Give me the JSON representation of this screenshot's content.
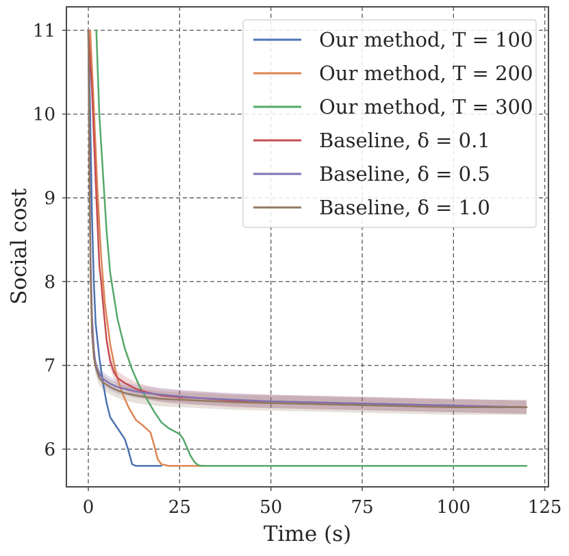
{
  "chart_data": {
    "type": "line",
    "title": "",
    "xlabel": "Time (s)",
    "ylabel": "Social cost",
    "xlim": [
      -6,
      126
    ],
    "ylim": [
      5.55,
      11.28
    ],
    "xticks": [
      0,
      25,
      50,
      75,
      100,
      125
    ],
    "yticks": [
      6,
      7,
      8,
      9,
      10,
      11
    ],
    "xtick_labels": [
      "0",
      "25",
      "50",
      "75",
      "100",
      "125"
    ],
    "ytick_labels": [
      "6",
      "7",
      "8",
      "9",
      "10",
      "11"
    ],
    "grid": true,
    "legend_position": "top-right",
    "series": [
      {
        "name": "Our method, T = 100",
        "color": "#4c72b0",
        "points": [
          [
            0,
            11.0
          ],
          [
            0.5,
            10.0
          ],
          [
            1,
            8.8
          ],
          [
            1.5,
            8.0
          ],
          [
            2,
            7.5
          ],
          [
            3,
            7.1
          ],
          [
            4,
            6.8
          ],
          [
            5,
            6.55
          ],
          [
            6,
            6.38
          ],
          [
            8,
            6.25
          ],
          [
            10,
            6.12
          ],
          [
            11,
            5.98
          ],
          [
            12,
            5.82
          ],
          [
            13,
            5.8
          ],
          [
            20,
            5.8
          ]
        ]
      },
      {
        "name": "Our method, T = 200",
        "color": "#dd8452",
        "points": [
          [
            0.5,
            11.0
          ],
          [
            1.5,
            10.1
          ],
          [
            2.5,
            9.1
          ],
          [
            3.5,
            8.3
          ],
          [
            4.5,
            7.75
          ],
          [
            6,
            7.25
          ],
          [
            7.5,
            6.92
          ],
          [
            9,
            6.7
          ],
          [
            11,
            6.5
          ],
          [
            13,
            6.35
          ],
          [
            15,
            6.28
          ],
          [
            17,
            6.2
          ],
          [
            18,
            6.05
          ],
          [
            19,
            5.88
          ],
          [
            20,
            5.82
          ],
          [
            22,
            5.8
          ],
          [
            32,
            5.8
          ]
        ]
      },
      {
        "name": "Our method, T = 300",
        "color": "#55a868",
        "points": [
          [
            2.2,
            11.0
          ],
          [
            3,
            10.0
          ],
          [
            4,
            9.3
          ],
          [
            5,
            8.6
          ],
          [
            6,
            8.1
          ],
          [
            8,
            7.55
          ],
          [
            10,
            7.2
          ],
          [
            12,
            6.95
          ],
          [
            14,
            6.75
          ],
          [
            16,
            6.6
          ],
          [
            18,
            6.45
          ],
          [
            20,
            6.32
          ],
          [
            22,
            6.25
          ],
          [
            25,
            6.18
          ],
          [
            26,
            6.12
          ],
          [
            27,
            6.02
          ],
          [
            28,
            5.92
          ],
          [
            29,
            5.85
          ],
          [
            30,
            5.81
          ],
          [
            31,
            5.8
          ],
          [
            120,
            5.8
          ]
        ]
      },
      {
        "name": "Baseline, δ = 0.1",
        "color": "#c44e52",
        "band": 0.08,
        "points": [
          [
            0,
            11.0
          ],
          [
            1,
            10.3
          ],
          [
            2,
            9.2
          ],
          [
            3,
            8.2
          ],
          [
            3.5,
            8.0
          ],
          [
            4,
            7.75
          ],
          [
            5,
            7.3
          ],
          [
            6,
            7.05
          ],
          [
            7,
            6.92
          ],
          [
            8,
            6.85
          ],
          [
            10,
            6.79
          ],
          [
            13,
            6.72
          ],
          [
            16,
            6.68
          ],
          [
            20,
            6.64
          ],
          [
            25,
            6.62
          ],
          [
            30,
            6.61
          ],
          [
            40,
            6.58
          ],
          [
            50,
            6.57
          ],
          [
            60,
            6.56
          ],
          [
            70,
            6.55
          ],
          [
            80,
            6.54
          ],
          [
            90,
            6.53
          ],
          [
            100,
            6.52
          ],
          [
            110,
            6.51
          ],
          [
            120,
            6.5
          ]
        ]
      },
      {
        "name": "Baseline, δ = 0.5",
        "color": "#8172b3",
        "band": 0.08,
        "points": [
          [
            0,
            11.0
          ],
          [
            0.3,
            9.5
          ],
          [
            0.6,
            8.3
          ],
          [
            1,
            7.6
          ],
          [
            1.5,
            7.2
          ],
          [
            2,
            7.0
          ],
          [
            3,
            6.9
          ],
          [
            4,
            6.84
          ],
          [
            6,
            6.78
          ],
          [
            8,
            6.74
          ],
          [
            10,
            6.72
          ],
          [
            13,
            6.69
          ],
          [
            16,
            6.67
          ],
          [
            20,
            6.65
          ],
          [
            25,
            6.63
          ],
          [
            30,
            6.61
          ],
          [
            40,
            6.59
          ],
          [
            50,
            6.57
          ],
          [
            60,
            6.56
          ],
          [
            70,
            6.55
          ],
          [
            80,
            6.54
          ],
          [
            90,
            6.53
          ],
          [
            100,
            6.52
          ],
          [
            110,
            6.51
          ],
          [
            120,
            6.5
          ]
        ]
      },
      {
        "name": "Baseline, δ = 1.0",
        "color": "#937860",
        "band": 0.09,
        "points": [
          [
            0,
            11.0
          ],
          [
            0.3,
            9.3
          ],
          [
            0.6,
            8.1
          ],
          [
            1,
            7.4
          ],
          [
            1.5,
            7.1
          ],
          [
            2,
            6.98
          ],
          [
            3,
            6.85
          ],
          [
            4,
            6.8
          ],
          [
            6,
            6.74
          ],
          [
            8,
            6.7
          ],
          [
            10,
            6.67
          ],
          [
            13,
            6.64
          ],
          [
            16,
            6.62
          ],
          [
            20,
            6.6
          ],
          [
            25,
            6.59
          ],
          [
            30,
            6.58
          ],
          [
            40,
            6.56
          ],
          [
            50,
            6.55
          ],
          [
            60,
            6.54
          ],
          [
            70,
            6.53
          ],
          [
            80,
            6.52
          ],
          [
            90,
            6.51
          ],
          [
            100,
            6.5
          ],
          [
            110,
            6.5
          ],
          [
            120,
            6.5
          ]
        ]
      }
    ]
  }
}
